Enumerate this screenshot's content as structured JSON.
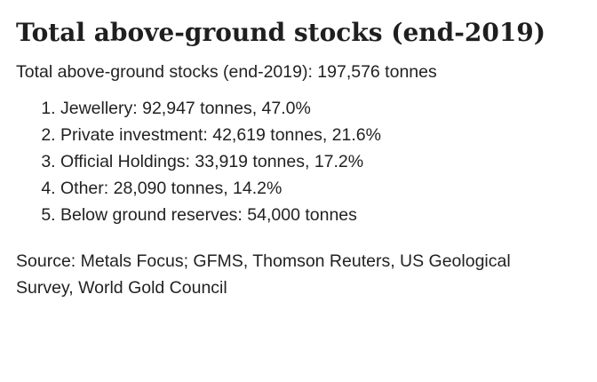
{
  "heading": "Total above-ground stocks (end-2019)",
  "summary": "Total above-ground stocks (end-2019): 197,576 tonnes",
  "items": [
    {
      "label": "Jewellery: 92,947 tonnes, 47.0%"
    },
    {
      "label": "Private investment: 42,619 tonnes, 21.6%"
    },
    {
      "label": "Official Holdings: 33,919 tonnes, 17.2%"
    },
    {
      "label": "Other: 28,090 tonnes, 14.2%"
    },
    {
      "label": "Below ground reserves: 54,000 tonnes"
    }
  ],
  "source": "Source: Metals Focus; GFMS, Thomson Reuters, US Geological Survey, World Gold Council"
}
